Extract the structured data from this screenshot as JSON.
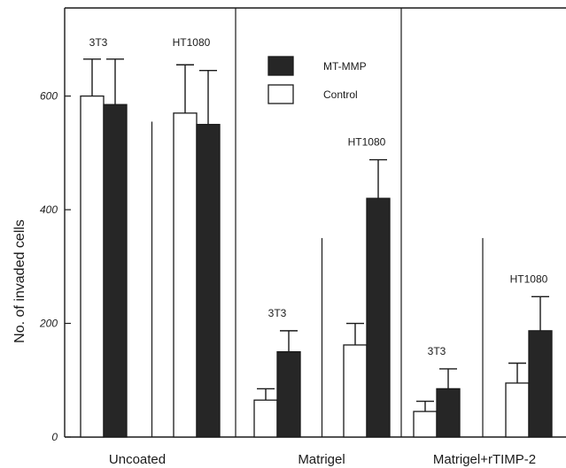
{
  "chart_data": {
    "type": "bar",
    "ylabel": "No. of invaded cells",
    "yticks": [
      0,
      200,
      400,
      600
    ],
    "ylim": [
      0,
      755
    ],
    "legend": {
      "placement": "top-center",
      "entries": [
        {
          "name": "MT-MMP",
          "color": "#262626"
        },
        {
          "name": "Control",
          "color": "#ffffff"
        }
      ]
    },
    "series": [
      {
        "name": "Control",
        "color": "#ffffff"
      },
      {
        "name": "MT-MMP",
        "color": "#262626"
      }
    ],
    "panels": [
      {
        "label": "Uncoated",
        "groups": [
          {
            "label": "3T3",
            "control": {
              "value": 600,
              "error": 65
            },
            "mt_mmp": {
              "value": 585,
              "error": 80
            }
          },
          {
            "label": "HT1080",
            "control": {
              "value": 570,
              "error": 85
            },
            "mt_mmp": {
              "value": 550,
              "error": 95
            }
          }
        ]
      },
      {
        "label": "Matrigel",
        "groups": [
          {
            "label": "3T3",
            "control": {
              "value": 65,
              "error": 20
            },
            "mt_mmp": {
              "value": 150,
              "error": 37
            }
          },
          {
            "label": "HT1080",
            "control": {
              "value": 162,
              "error": 38
            },
            "mt_mmp": {
              "value": 420,
              "error": 68
            }
          }
        ]
      },
      {
        "label": "Matrigel+rTIMP-2",
        "groups": [
          {
            "label": "3T3",
            "control": {
              "value": 45,
              "error": 18
            },
            "mt_mmp": {
              "value": 85,
              "error": 35
            }
          },
          {
            "label": "HT1080",
            "control": {
              "value": 95,
              "error": 35
            },
            "mt_mmp": {
              "value": 187,
              "error": 60
            }
          }
        ]
      }
    ]
  }
}
